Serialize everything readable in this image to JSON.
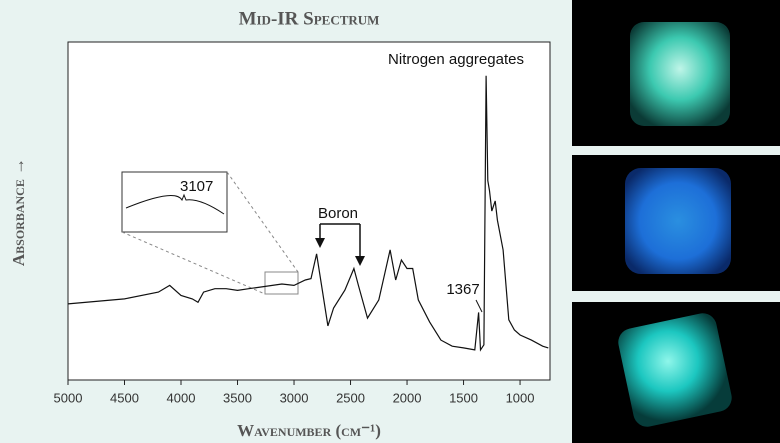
{
  "chart_data": {
    "type": "line",
    "title": "Mid-IR Spectrum",
    "x_label": "Wavenumber (cm⁻¹)",
    "y_label": "Absorbance →",
    "annotations": [
      "3107",
      "Boron",
      "1367",
      "Nitrogen aggregates"
    ],
    "xlim": [
      5000,
      735
    ],
    "ylim": [
      0,
      100
    ],
    "xticks": [
      5000,
      4500,
      4000,
      3500,
      3000,
      2500,
      2000,
      1500,
      1000
    ],
    "color": "#111111",
    "x": [
      5000,
      4500,
      4200,
      4100,
      4000,
      3900,
      3850,
      3800,
      3700,
      3600,
      3500,
      3400,
      3300,
      3107,
      3000,
      2900,
      2850,
      2800,
      2750,
      2700,
      2650,
      2550,
      2470,
      2430,
      2350,
      2250,
      2150,
      2100,
      2050,
      2000,
      1950,
      1900,
      1800,
      1700,
      1600,
      1500,
      1400,
      1367,
      1350,
      1320,
      1300,
      1285,
      1270,
      1250,
      1220,
      1200,
      1150,
      1100,
      1050,
      1000,
      900,
      800,
      750
    ],
    "values": [
      22.5,
      24,
      26,
      28,
      25,
      24,
      23,
      26,
      27,
      27,
      26.5,
      27,
      27.5,
      28.4,
      28,
      29.6,
      30,
      37.3,
      26.6,
      16,
      21.3,
      26.6,
      33,
      28,
      18.3,
      23.7,
      38.5,
      29.6,
      35.5,
      33,
      33,
      23.7,
      17.2,
      11.8,
      10,
      9.5,
      8.9,
      20,
      8.9,
      10.4,
      90,
      59,
      56,
      50,
      53,
      47.3,
      38.5,
      17.8,
      14.8,
      13.3,
      11.8,
      10,
      9.5
    ]
  }
}
